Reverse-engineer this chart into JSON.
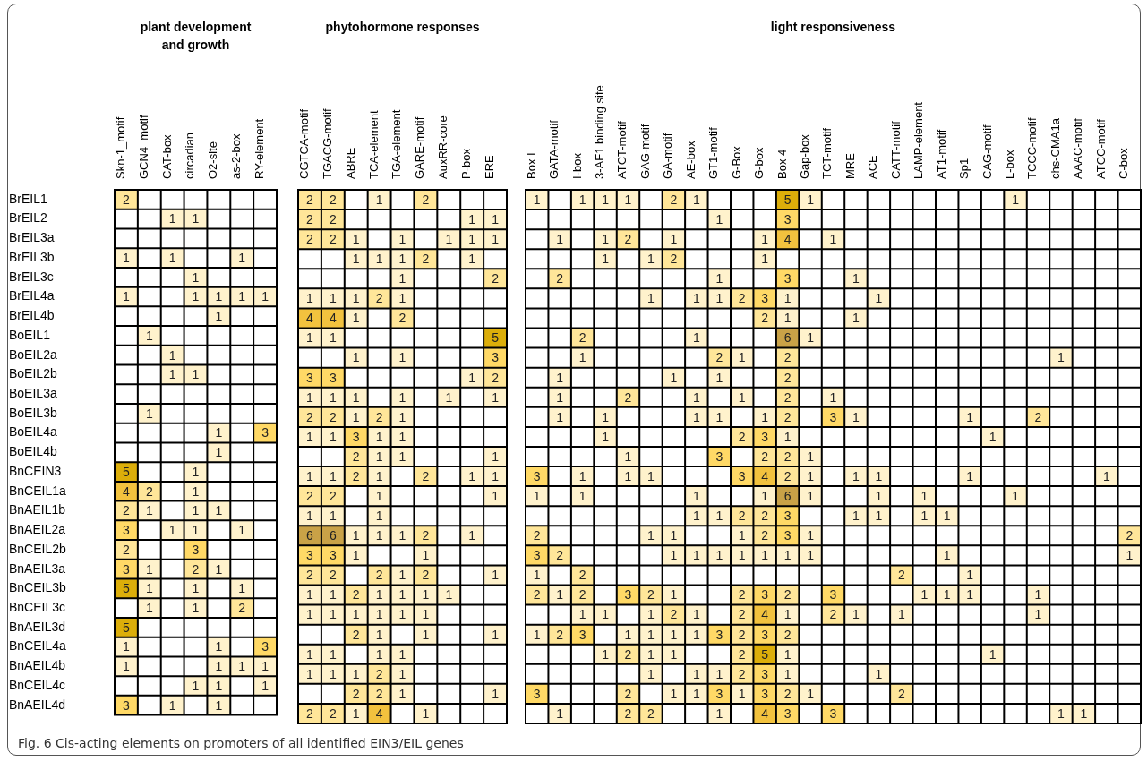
{
  "chart_data": [
    {
      "type": "heatmap",
      "title": "plant development and growth",
      "categories": [
        "Skn-1_motif",
        "GCN4_motif",
        "CAT-box",
        "circadian",
        "O2-site",
        "as-2-box",
        "RY-element"
      ],
      "y_categories": [
        "BrEIL1",
        "BrEIL2",
        "BrEIL3a",
        "BrEIL3b",
        "BrEIL3c",
        "BrEIL4a",
        "BrEIL4b",
        "BoEIL1",
        "BoEIL2a",
        "BoEIL2b",
        "BoEIL3a",
        "BoEIL3b",
        "BoEIL4a",
        "BoEIL4b",
        "BnCEIN3",
        "BnCEIL1a",
        "BnAEIL1b",
        "BnAEIL2a",
        "BnCEIL2b",
        "BnAEIL3a",
        "BnCEIL3b",
        "BnCEIL3c",
        "BnAEIL3d",
        "BnCEIL4a",
        "BnAEIL4b",
        "BnCEIL4c",
        "BnAEIL4d"
      ],
      "cells": [
        [
          2,
          null,
          null,
          null,
          null,
          null,
          null
        ],
        [
          null,
          null,
          1,
          1,
          null,
          null,
          null
        ],
        [
          null,
          null,
          null,
          null,
          null,
          null,
          null
        ],
        [
          1,
          null,
          1,
          null,
          null,
          1,
          null
        ],
        [
          null,
          null,
          null,
          1,
          null,
          null,
          null
        ],
        [
          1,
          null,
          null,
          1,
          1,
          1,
          1
        ],
        [
          null,
          null,
          null,
          null,
          1,
          null,
          null
        ],
        [
          null,
          1,
          null,
          null,
          null,
          null,
          null
        ],
        [
          null,
          null,
          1,
          null,
          null,
          null,
          null
        ],
        [
          null,
          null,
          1,
          1,
          null,
          null,
          null
        ],
        [
          null,
          null,
          null,
          null,
          null,
          null,
          null
        ],
        [
          null,
          1,
          null,
          null,
          null,
          null,
          null
        ],
        [
          null,
          null,
          null,
          null,
          1,
          null,
          3
        ],
        [
          null,
          null,
          null,
          null,
          1,
          null,
          null
        ],
        [
          5,
          null,
          null,
          1,
          null,
          null,
          null
        ],
        [
          4,
          2,
          null,
          1,
          null,
          null,
          null
        ],
        [
          2,
          1,
          null,
          1,
          1,
          null,
          null
        ],
        [
          3,
          null,
          1,
          1,
          null,
          1,
          null
        ],
        [
          2,
          null,
          null,
          3,
          null,
          null,
          null
        ],
        [
          3,
          1,
          null,
          2,
          1,
          null,
          null
        ],
        [
          5,
          1,
          null,
          1,
          null,
          1,
          null
        ],
        [
          null,
          1,
          null,
          1,
          null,
          2,
          null
        ],
        [
          5,
          null,
          null,
          null,
          null,
          null,
          null
        ],
        [
          1,
          null,
          null,
          null,
          1,
          null,
          3
        ],
        [
          1,
          null,
          null,
          null,
          1,
          1,
          1
        ],
        [
          null,
          null,
          null,
          1,
          1,
          null,
          1
        ],
        [
          3,
          null,
          1,
          null,
          1,
          null,
          null
        ]
      ],
      "grid": true,
      "data_labels": true,
      "annotations": [
        "Fig. 6 Cis-acting elements on promoters of all identified EIN3/EIL genes"
      ]
    },
    {
      "type": "heatmap",
      "title": "phytohormone responses",
      "categories": [
        "CGTCA-motif",
        "TGACG-motif",
        "ABRE",
        "TCA-element",
        "TGA-element",
        "GARE-motif",
        "AuxRR-core",
        "P-box",
        "ERE"
      ],
      "y_categories": [
        null,
        null,
        null,
        null,
        null,
        null,
        null,
        null,
        null,
        null,
        null,
        null,
        null,
        null,
        null,
        null,
        null,
        null,
        null,
        null,
        null,
        null,
        null,
        null,
        null,
        null,
        null
      ],
      "cells": [
        [
          2,
          2,
          null,
          1,
          null,
          2,
          null,
          null,
          null
        ],
        [
          2,
          2,
          null,
          null,
          null,
          null,
          null,
          1,
          1
        ],
        [
          2,
          2,
          1,
          null,
          1,
          null,
          1,
          1,
          1
        ],
        [
          null,
          null,
          1,
          1,
          1,
          2,
          null,
          1,
          null
        ],
        [
          null,
          null,
          null,
          null,
          1,
          null,
          null,
          null,
          2
        ],
        [
          1,
          1,
          1,
          2,
          1,
          null,
          null,
          null,
          null
        ],
        [
          4,
          4,
          1,
          null,
          2,
          null,
          null,
          null,
          null
        ],
        [
          1,
          1,
          null,
          null,
          null,
          null,
          null,
          null,
          5
        ],
        [
          null,
          null,
          1,
          null,
          1,
          null,
          null,
          null,
          3
        ],
        [
          3,
          3,
          null,
          null,
          null,
          null,
          null,
          1,
          2
        ],
        [
          1,
          1,
          1,
          null,
          1,
          null,
          1,
          null,
          1
        ],
        [
          2,
          2,
          1,
          2,
          1,
          null,
          null,
          null,
          null
        ],
        [
          1,
          1,
          3,
          1,
          1,
          null,
          null,
          null,
          null
        ],
        [
          null,
          null,
          2,
          1,
          1,
          null,
          null,
          null,
          1
        ],
        [
          1,
          1,
          2,
          1,
          null,
          2,
          null,
          1,
          1
        ],
        [
          2,
          2,
          null,
          1,
          null,
          null,
          null,
          null,
          1
        ],
        [
          1,
          1,
          null,
          1,
          null,
          null,
          null,
          null,
          null
        ],
        [
          6,
          6,
          1,
          1,
          1,
          2,
          null,
          1,
          null
        ],
        [
          3,
          3,
          1,
          null,
          null,
          1,
          null,
          null,
          null
        ],
        [
          2,
          2,
          null,
          2,
          1,
          2,
          null,
          null,
          1
        ],
        [
          1,
          1,
          2,
          1,
          1,
          1,
          1,
          null,
          null
        ],
        [
          1,
          1,
          1,
          1,
          1,
          1,
          null,
          null,
          null
        ],
        [
          null,
          null,
          2,
          1,
          null,
          1,
          null,
          null,
          1
        ],
        [
          1,
          1,
          null,
          1,
          1,
          null,
          null,
          null,
          null
        ],
        [
          1,
          1,
          1,
          2,
          1,
          null,
          null,
          null,
          null
        ],
        [
          null,
          null,
          2,
          2,
          1,
          null,
          null,
          null,
          1
        ],
        [
          2,
          2,
          1,
          4,
          null,
          1,
          null,
          null,
          null
        ]
      ],
      "grid": true,
      "data_labels": true,
      "tick_labels": "x"
    },
    {
      "type": "heatmap",
      "title": "light responsiveness",
      "categories": [
        "Box I",
        "GATA-motif",
        "I-box",
        "3-AF1 binding site",
        "ATCT-motif",
        "GAG-motif",
        "GA-motif",
        "AE-box",
        "GT1-motif",
        "G-Box",
        "G-box",
        "Box 4",
        "Gap-box",
        "TCT-motif",
        "MRE",
        "ACE",
        "CATT-motif",
        "LAMP-element",
        "AT1-motif",
        "Sp1",
        "CAG-motif",
        "L-box",
        "TCCC-motif",
        "chs-CMA1a",
        "AAAC-motif",
        "ATCC-motif",
        "C-box"
      ],
      "y_categories": [
        null,
        null,
        null,
        null,
        null,
        null,
        null,
        null,
        null,
        null,
        null,
        null,
        null,
        null,
        null,
        null,
        null,
        null,
        null,
        null,
        null,
        null,
        null,
        null,
        null,
        null,
        null
      ],
      "cells": [
        [
          1,
          null,
          1,
          1,
          1,
          null,
          2,
          1,
          null,
          null,
          null,
          5,
          1,
          null,
          null,
          null,
          null,
          null,
          null,
          null,
          null,
          1,
          null,
          null,
          null,
          null,
          null
        ],
        [
          null,
          null,
          null,
          null,
          null,
          null,
          null,
          null,
          1,
          null,
          null,
          3,
          null,
          null,
          null,
          null,
          null,
          null,
          null,
          null,
          null,
          null,
          null,
          null,
          null,
          null,
          null
        ],
        [
          null,
          1,
          null,
          1,
          2,
          null,
          1,
          null,
          null,
          null,
          1,
          4,
          null,
          1,
          null,
          null,
          null,
          null,
          null,
          null,
          null,
          null,
          null,
          null,
          null,
          null,
          null
        ],
        [
          null,
          null,
          null,
          1,
          null,
          1,
          2,
          null,
          null,
          null,
          1,
          null,
          null,
          null,
          null,
          null,
          null,
          null,
          null,
          null,
          null,
          null,
          null,
          null,
          null,
          null,
          null
        ],
        [
          null,
          2,
          null,
          null,
          null,
          null,
          null,
          null,
          1,
          null,
          null,
          3,
          null,
          null,
          1,
          null,
          null,
          null,
          null,
          null,
          null,
          null,
          null,
          null,
          null,
          null,
          null
        ],
        [
          null,
          null,
          null,
          null,
          null,
          1,
          null,
          1,
          1,
          2,
          3,
          1,
          null,
          null,
          null,
          1,
          null,
          null,
          null,
          null,
          null,
          null,
          null,
          null,
          null,
          null,
          null
        ],
        [
          null,
          null,
          null,
          null,
          null,
          null,
          null,
          null,
          null,
          null,
          2,
          1,
          null,
          null,
          1,
          null,
          null,
          null,
          null,
          null,
          null,
          null,
          null,
          null,
          null,
          null,
          null
        ],
        [
          null,
          null,
          2,
          null,
          null,
          null,
          null,
          1,
          null,
          null,
          null,
          6,
          1,
          null,
          null,
          null,
          null,
          null,
          null,
          null,
          null,
          null,
          null,
          null,
          null,
          null,
          null
        ],
        [
          null,
          null,
          1,
          null,
          null,
          null,
          null,
          null,
          2,
          1,
          null,
          2,
          null,
          null,
          null,
          null,
          null,
          null,
          null,
          null,
          null,
          null,
          null,
          1,
          null,
          null,
          null
        ],
        [
          null,
          1,
          null,
          null,
          null,
          null,
          1,
          null,
          1,
          null,
          null,
          2,
          null,
          null,
          null,
          null,
          null,
          null,
          null,
          null,
          null,
          null,
          null,
          null,
          null,
          null,
          null
        ],
        [
          null,
          1,
          null,
          null,
          2,
          null,
          null,
          1,
          null,
          1,
          null,
          2,
          null,
          1,
          null,
          null,
          null,
          null,
          null,
          null,
          null,
          null,
          null,
          null,
          null,
          null,
          null
        ],
        [
          null,
          1,
          null,
          1,
          null,
          null,
          null,
          1,
          1,
          null,
          1,
          2,
          null,
          3,
          1,
          null,
          null,
          null,
          null,
          1,
          null,
          null,
          2,
          null,
          null,
          null,
          null
        ],
        [
          null,
          null,
          null,
          1,
          null,
          null,
          null,
          null,
          null,
          2,
          3,
          1,
          null,
          null,
          null,
          null,
          null,
          null,
          null,
          null,
          1,
          null,
          null,
          null,
          null,
          null,
          null
        ],
        [
          null,
          null,
          null,
          null,
          1,
          null,
          null,
          null,
          3,
          null,
          2,
          2,
          1,
          null,
          null,
          null,
          null,
          null,
          null,
          null,
          null,
          null,
          null,
          null,
          null,
          null,
          null
        ],
        [
          3,
          null,
          1,
          null,
          1,
          1,
          null,
          null,
          null,
          3,
          4,
          2,
          1,
          null,
          1,
          1,
          null,
          null,
          null,
          1,
          null,
          null,
          null,
          null,
          null,
          1,
          null
        ],
        [
          1,
          null,
          1,
          null,
          null,
          null,
          null,
          1,
          null,
          null,
          1,
          6,
          1,
          null,
          null,
          1,
          null,
          1,
          null,
          null,
          null,
          1,
          null,
          null,
          null,
          null,
          null
        ],
        [
          null,
          null,
          null,
          null,
          null,
          null,
          null,
          1,
          1,
          2,
          2,
          3,
          null,
          null,
          1,
          1,
          null,
          1,
          1,
          null,
          null,
          null,
          null,
          null,
          null,
          null,
          null
        ],
        [
          2,
          null,
          null,
          null,
          null,
          1,
          1,
          null,
          null,
          1,
          2,
          3,
          1,
          null,
          null,
          null,
          null,
          null,
          null,
          null,
          null,
          null,
          null,
          null,
          null,
          null,
          2
        ],
        [
          3,
          2,
          null,
          null,
          null,
          null,
          1,
          1,
          1,
          1,
          1,
          1,
          1,
          null,
          null,
          null,
          null,
          null,
          1,
          null,
          null,
          null,
          null,
          null,
          null,
          null,
          1
        ],
        [
          1,
          null,
          2,
          null,
          null,
          null,
          null,
          null,
          null,
          null,
          null,
          null,
          null,
          null,
          null,
          null,
          2,
          null,
          null,
          1,
          null,
          null,
          null,
          null,
          null,
          null,
          null
        ],
        [
          2,
          1,
          2,
          null,
          3,
          2,
          1,
          null,
          null,
          2,
          3,
          2,
          null,
          3,
          null,
          null,
          null,
          1,
          1,
          1,
          null,
          null,
          1,
          null,
          null,
          null,
          null
        ],
        [
          null,
          null,
          1,
          1,
          null,
          1,
          2,
          1,
          null,
          2,
          4,
          1,
          null,
          2,
          1,
          null,
          1,
          null,
          null,
          null,
          null,
          null,
          1,
          null,
          null,
          null,
          null
        ],
        [
          1,
          2,
          3,
          null,
          1,
          1,
          1,
          1,
          3,
          2,
          3,
          2,
          null,
          null,
          null,
          null,
          null,
          null,
          null,
          null,
          null,
          null,
          null,
          null,
          null,
          null,
          null
        ],
        [
          null,
          null,
          null,
          1,
          2,
          1,
          1,
          null,
          null,
          2,
          5,
          1,
          null,
          null,
          null,
          null,
          null,
          null,
          null,
          null,
          1,
          null,
          null,
          null,
          null,
          null,
          null
        ],
        [
          null,
          null,
          null,
          null,
          null,
          1,
          null,
          1,
          1,
          2,
          3,
          1,
          null,
          null,
          null,
          1,
          null,
          null,
          null,
          null,
          null,
          null,
          null,
          null,
          null,
          null,
          null
        ],
        [
          3,
          null,
          null,
          null,
          2,
          null,
          1,
          1,
          3,
          1,
          3,
          2,
          1,
          null,
          null,
          null,
          2,
          null,
          null,
          null,
          null,
          null,
          null,
          null,
          null,
          null,
          null
        ],
        [
          null,
          1,
          null,
          null,
          2,
          2,
          null,
          null,
          1,
          null,
          4,
          3,
          null,
          3,
          null,
          null,
          null,
          null,
          null,
          null,
          null,
          null,
          null,
          1,
          1,
          null,
          null
        ]
      ],
      "grid": true,
      "data_labels": true,
      "tick_labels": "x"
    }
  ]
}
